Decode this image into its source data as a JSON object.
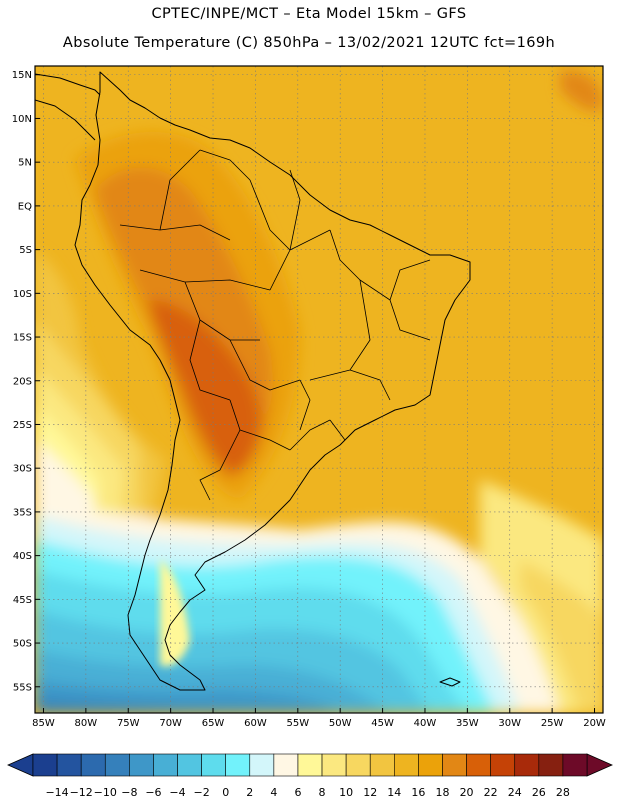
{
  "header": {
    "line1": "CPTEC/INPE/MCT –  Eta Model 15km – GFS",
    "line2": "Absolute Temperature (C) 850hPa – 13/02/2021 12UTC fct=169h"
  },
  "map": {
    "lon_min": -86,
    "lon_max": -19,
    "lat_min": -58,
    "lat_max": 16,
    "lat_ticks": [
      {
        "value": 15,
        "label": "15N"
      },
      {
        "value": 10,
        "label": "10N"
      },
      {
        "value": 5,
        "label": "5N"
      },
      {
        "value": 0,
        "label": "EQ"
      },
      {
        "value": -5,
        "label": "5S"
      },
      {
        "value": -10,
        "label": "10S"
      },
      {
        "value": -15,
        "label": "15S"
      },
      {
        "value": -20,
        "label": "20S"
      },
      {
        "value": -25,
        "label": "25S"
      },
      {
        "value": -30,
        "label": "30S"
      },
      {
        "value": -35,
        "label": "35S"
      },
      {
        "value": -40,
        "label": "40S"
      },
      {
        "value": -45,
        "label": "45S"
      },
      {
        "value": -50,
        "label": "50S"
      },
      {
        "value": -55,
        "label": "55S"
      }
    ],
    "lon_ticks": [
      {
        "value": -85,
        "label": "85W"
      },
      {
        "value": -80,
        "label": "80W"
      },
      {
        "value": -75,
        "label": "75W"
      },
      {
        "value": -70,
        "label": "70W"
      },
      {
        "value": -65,
        "label": "65W"
      },
      {
        "value": -60,
        "label": "60W"
      },
      {
        "value": -55,
        "label": "55W"
      },
      {
        "value": -50,
        "label": "50W"
      },
      {
        "value": -45,
        "label": "45W"
      },
      {
        "value": -40,
        "label": "40W"
      },
      {
        "value": -35,
        "label": "35W"
      },
      {
        "value": -30,
        "label": "30W"
      },
      {
        "value": -25,
        "label": "25W"
      },
      {
        "value": -20,
        "label": "20W"
      }
    ]
  },
  "colorbar": {
    "labels": [
      "−14",
      "−12",
      "−10",
      "−8",
      "−6",
      "−4",
      "−2",
      "0",
      "2",
      "4",
      "6",
      "8",
      "10",
      "12",
      "14",
      "16",
      "18",
      "20",
      "22",
      "24",
      "26",
      "28"
    ],
    "colors": [
      "#1b3f8f",
      "#23549f",
      "#2c6aae",
      "#3580bb",
      "#3e97c8",
      "#48afd5",
      "#52c5e1",
      "#5edced",
      "#72f2fb",
      "#d3f6fa",
      "#fff7e4",
      "#fff898",
      "#fbe880",
      "#f7d760",
      "#f2c540",
      "#eeb420",
      "#eba20a",
      "#e28715",
      "#d86008",
      "#c54206",
      "#a82a0a",
      "#862010",
      "#6d0a28"
    ],
    "under_color": "#1b3f8f",
    "over_color": "#6d0a28"
  }
}
